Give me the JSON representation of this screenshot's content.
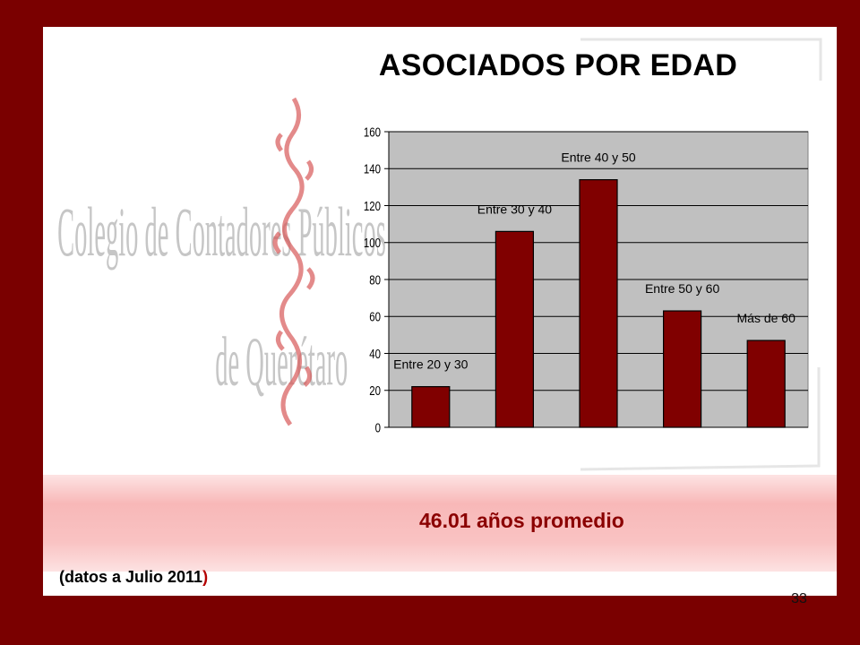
{
  "slide": {
    "title": "ASOCIADOS POR EDAD",
    "average_text": "46.01 años promedio",
    "note_open": "(datos a Julio 2011",
    "note_close": ")",
    "page_number": "33",
    "watermark_line1": "Colegio de Contadores Públicos",
    "watermark_line2": "de Querétaro"
  },
  "colors": {
    "frame": "#7a0000",
    "bar": "#800000",
    "plot_area": "#c0c0c0",
    "average_text": "#8b0000"
  },
  "chart_data": {
    "type": "bar",
    "categories": [
      "Entre 20 y 30",
      "Entre 30 y 40",
      "Entre 40 y 50",
      "Entre 50 y 60",
      "Más de 60"
    ],
    "values": [
      22,
      106,
      134,
      63,
      47
    ],
    "yticks": [
      0,
      20,
      40,
      60,
      80,
      100,
      120,
      140,
      160
    ],
    "ylim": [
      0,
      160
    ],
    "title": "",
    "xlabel": "",
    "ylabel": "",
    "grid": true,
    "legend": "none"
  }
}
